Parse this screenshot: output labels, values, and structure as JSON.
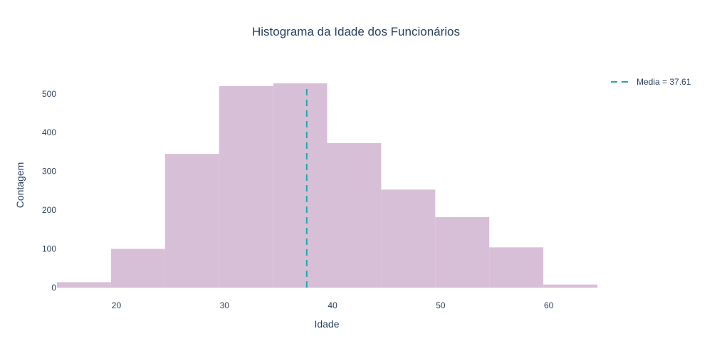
{
  "chart_data": {
    "type": "bar",
    "title": "Histograma da Idade dos Funcionários",
    "xlabel": "Idade",
    "ylabel": "Contagem",
    "bin_edges": [
      14.5,
      19.5,
      24.5,
      29.5,
      34.5,
      39.5,
      44.5,
      49.5,
      54.5,
      59.5,
      64.5
    ],
    "values": [
      14,
      100,
      345,
      520,
      527,
      373,
      253,
      182,
      104,
      8
    ],
    "xlim": [
      14.5,
      64.5
    ],
    "ylim": [
      0,
      540
    ],
    "x_ticks": [
      20,
      30,
      40,
      50,
      60
    ],
    "y_ticks": [
      0,
      100,
      200,
      300,
      400,
      500
    ],
    "mean_line": {
      "x": 37.61,
      "label": "Media = 37.61"
    },
    "colors": {
      "bars": "#d8bfd8",
      "mean_line": "#20a9b0"
    },
    "grid": false,
    "legend_position": "top-right"
  }
}
